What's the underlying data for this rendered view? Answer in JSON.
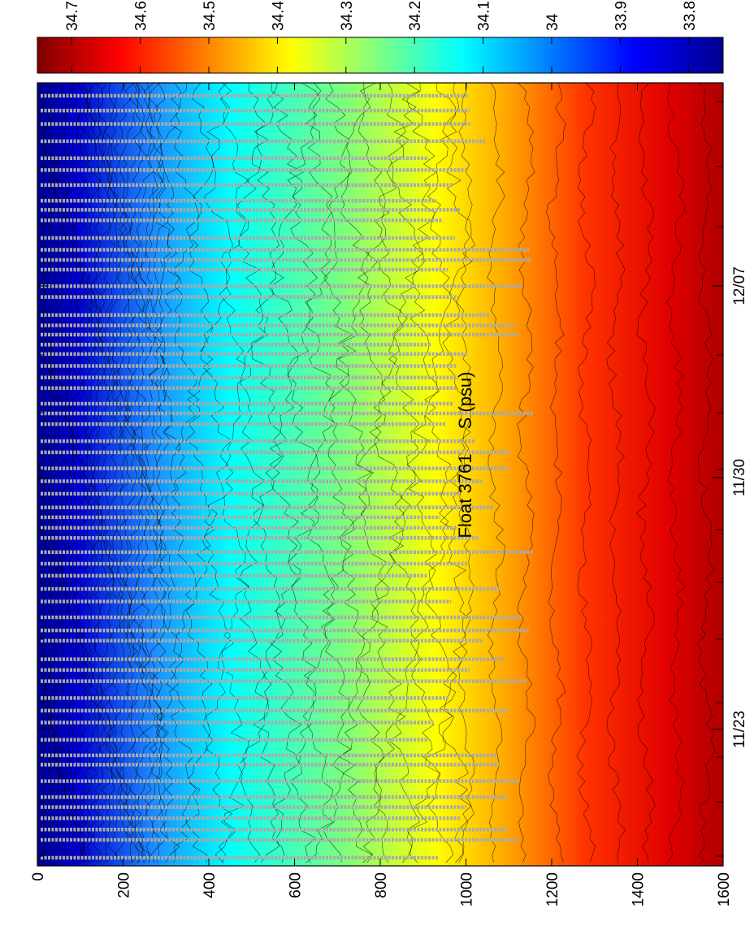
{
  "chart_data": {
    "type": "heatmap",
    "title_parts": [
      "Float 3761",
      "S (psu)"
    ],
    "orientation": "rotated-90-counterclockwise",
    "depth_axis": {
      "ticks": [
        0,
        200,
        400,
        600,
        800,
        1000,
        1200,
        1400,
        1600
      ],
      "labels": [
        "0",
        "200",
        "400",
        "600",
        "800",
        "1000",
        "1200",
        "1400",
        "1600"
      ],
      "range": [
        0,
        1600
      ]
    },
    "time_axis": {
      "labeled_ticks": [
        "11/23",
        "11/30",
        "12/07"
      ],
      "range_days_approx": 18
    },
    "colorbar": {
      "ticks": [
        34.7,
        34.6,
        34.5,
        34.4,
        34.3,
        34.2,
        34.1,
        34,
        33.9,
        33.8
      ],
      "labels": [
        "34.7",
        "34.6",
        "34.5",
        "34.4",
        "34.3",
        "34.2",
        "34.1",
        "34",
        "33.9",
        "33.8"
      ],
      "range": [
        33.75,
        34.75
      ],
      "colormap": "jet"
    },
    "salinity_profile": {
      "depths": [
        0,
        50,
        100,
        150,
        200,
        300,
        400,
        500,
        600,
        700,
        800,
        900,
        1000,
        1100,
        1200,
        1300,
        1400,
        1500,
        1600
      ],
      "salinity": [
        33.8,
        33.85,
        33.95,
        34.05,
        34.15,
        34.2,
        34.25,
        34.3,
        34.35,
        34.4,
        34.45,
        34.5,
        34.55,
        34.6,
        34.63,
        34.66,
        34.68,
        34.7,
        34.72
      ]
    },
    "profile_marker_color": "#aaaaaa",
    "contour_color": "#000000"
  }
}
